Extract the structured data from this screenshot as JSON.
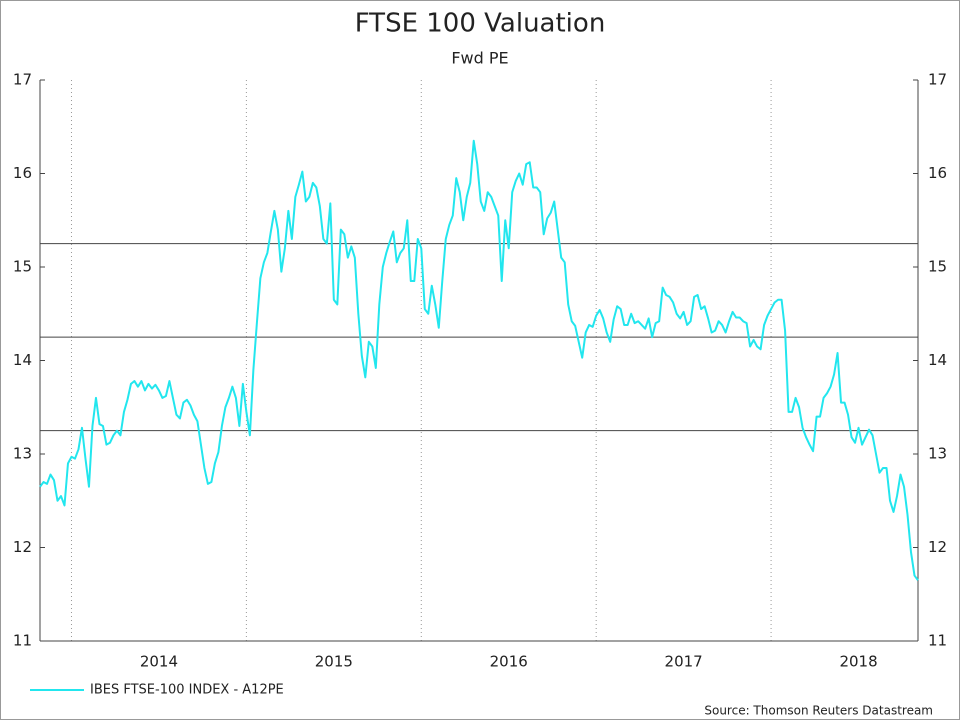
{
  "chart_data": {
    "type": "line",
    "title": "FTSE 100 Valuation",
    "subtitle": "Fwd PE",
    "source": "Source: Thomson Reuters Datastream",
    "xlim": [
      2013.82,
      2018.84
    ],
    "ylim": [
      11,
      17
    ],
    "yticks": [
      11,
      12,
      13,
      14,
      15,
      16,
      17
    ],
    "xticks": [
      {
        "value": 2014.5,
        "label": "2014"
      },
      {
        "value": 2015.5,
        "label": "2015"
      },
      {
        "value": 2016.5,
        "label": "2016"
      },
      {
        "value": 2017.5,
        "label": "2017"
      },
      {
        "value": 2018.5,
        "label": "2018"
      }
    ],
    "xgrid": [
      2014,
      2015,
      2016,
      2017,
      2018
    ],
    "hlines": [
      15.25,
      14.25,
      13.25
    ],
    "x": [
      2013.82,
      2013.84,
      2013.86,
      2013.88,
      2013.9,
      2013.92,
      2013.94,
      2013.96,
      2013.98,
      2014,
      2014.02,
      2014.04,
      2014.06,
      2014.08,
      2014.1,
      2014.12,
      2014.14,
      2014.16,
      2014.18,
      2014.2,
      2014.22,
      2014.24,
      2014.26,
      2014.28,
      2014.3,
      2014.32,
      2014.34,
      2014.36,
      2014.38,
      2014.4,
      2014.42,
      2014.44,
      2014.46,
      2014.48,
      2014.5,
      2014.52,
      2014.54,
      2014.56,
      2014.58,
      2014.6,
      2014.62,
      2014.64,
      2014.66,
      2014.68,
      2014.7,
      2014.72,
      2014.74,
      2014.76,
      2014.78,
      2014.8,
      2014.82,
      2014.84,
      2014.86,
      2014.88,
      2014.9,
      2014.92,
      2014.94,
      2014.96,
      2014.98,
      2015,
      2015.02,
      2015.04,
      2015.06,
      2015.08,
      2015.1,
      2015.12,
      2015.14,
      2015.16,
      2015.18,
      2015.2,
      2015.22,
      2015.24,
      2015.26,
      2015.28,
      2015.3,
      2015.32,
      2015.34,
      2015.36,
      2015.38,
      2015.4,
      2015.42,
      2015.44,
      2015.46,
      2015.48,
      2015.5,
      2015.52,
      2015.54,
      2015.56,
      2015.58,
      2015.6,
      2015.62,
      2015.64,
      2015.66,
      2015.68,
      2015.7,
      2015.72,
      2015.74,
      2015.76,
      2015.78,
      2015.8,
      2015.82,
      2015.84,
      2015.86,
      2015.88,
      2015.9,
      2015.92,
      2015.94,
      2015.96,
      2015.98,
      2016,
      2016.02,
      2016.04,
      2016.06,
      2016.08,
      2016.1,
      2016.12,
      2016.14,
      2016.16,
      2016.18,
      2016.2,
      2016.22,
      2016.24,
      2016.26,
      2016.28,
      2016.3,
      2016.32,
      2016.34,
      2016.36,
      2016.38,
      2016.4,
      2016.42,
      2016.44,
      2016.46,
      2016.48,
      2016.5,
      2016.52,
      2016.54,
      2016.56,
      2016.58,
      2016.6,
      2016.62,
      2016.64,
      2016.66,
      2016.68,
      2016.7,
      2016.72,
      2016.74,
      2016.76,
      2016.78,
      2016.8,
      2016.82,
      2016.84,
      2016.86,
      2016.88,
      2016.9,
      2016.92,
      2016.94,
      2016.96,
      2016.98,
      2017,
      2017.02,
      2017.04,
      2017.06,
      2017.08,
      2017.1,
      2017.12,
      2017.14,
      2017.16,
      2017.18,
      2017.2,
      2017.22,
      2017.24,
      2017.26,
      2017.28,
      2017.3,
      2017.32,
      2017.34,
      2017.36,
      2017.38,
      2017.4,
      2017.42,
      2017.44,
      2017.46,
      2017.48,
      2017.5,
      2017.52,
      2017.54,
      2017.56,
      2017.58,
      2017.6,
      2017.62,
      2017.64,
      2017.66,
      2017.68,
      2017.7,
      2017.72,
      2017.74,
      2017.76,
      2017.78,
      2017.8,
      2017.82,
      2017.84,
      2017.86,
      2017.88,
      2017.9,
      2017.92,
      2017.94,
      2017.96,
      2017.98,
      2018,
      2018.02,
      2018.04,
      2018.06,
      2018.08,
      2018.1,
      2018.12,
      2018.14,
      2018.16,
      2018.18,
      2018.2,
      2018.22,
      2018.24,
      2018.26,
      2018.28,
      2018.3,
      2018.32,
      2018.34,
      2018.36,
      2018.38,
      2018.4,
      2018.42,
      2018.44,
      2018.46,
      2018.48,
      2018.5,
      2018.52,
      2018.54,
      2018.56,
      2018.58,
      2018.6,
      2018.62,
      2018.64,
      2018.66,
      2018.68,
      2018.7,
      2018.72,
      2018.74,
      2018.76,
      2018.78,
      2018.8,
      2018.82,
      2018.84
    ],
    "series": [
      {
        "name": "IBES FTSE-100 INDEX - A12PE",
        "color": "#22e6ee",
        "values": [
          12.65,
          12.7,
          12.68,
          12.78,
          12.72,
          12.5,
          12.55,
          12.45,
          12.9,
          12.97,
          12.95,
          13.05,
          13.28,
          12.95,
          12.65,
          13.3,
          13.6,
          13.32,
          13.3,
          13.1,
          13.12,
          13.2,
          13.25,
          13.2,
          13.45,
          13.58,
          13.75,
          13.78,
          13.72,
          13.78,
          13.68,
          13.75,
          13.7,
          13.74,
          13.68,
          13.6,
          13.62,
          13.78,
          13.6,
          13.42,
          13.38,
          13.55,
          13.58,
          13.52,
          13.42,
          13.35,
          13.1,
          12.85,
          12.68,
          12.7,
          12.9,
          13.02,
          13.3,
          13.5,
          13.6,
          13.72,
          13.6,
          13.3,
          13.75,
          13.45,
          13.2,
          13.9,
          14.4,
          14.88,
          15.05,
          15.15,
          15.38,
          15.6,
          15.4,
          14.95,
          15.2,
          15.6,
          15.3,
          15.75,
          15.88,
          16.02,
          15.7,
          15.75,
          15.9,
          15.85,
          15.65,
          15.3,
          15.25,
          15.68,
          14.65,
          14.6,
          15.4,
          15.35,
          15.1,
          15.22,
          15.1,
          14.5,
          14.05,
          13.82,
          14.2,
          14.15,
          13.92,
          14.6,
          15.0,
          15.15,
          15.27,
          15.38,
          15.05,
          15.15,
          15.2,
          15.5,
          14.85,
          14.85,
          15.3,
          15.2,
          14.55,
          14.5,
          14.8,
          14.6,
          14.35,
          14.85,
          15.3,
          15.45,
          15.55,
          15.95,
          15.8,
          15.5,
          15.75,
          15.9,
          16.35,
          16.1,
          15.7,
          15.6,
          15.8,
          15.75,
          15.65,
          15.55,
          14.85,
          15.5,
          15.2,
          15.8,
          15.92,
          16.0,
          15.88,
          16.1,
          16.12,
          15.85,
          15.85,
          15.8,
          15.35,
          15.52,
          15.58,
          15.7,
          15.4,
          15.1,
          15.05,
          14.6,
          14.42,
          14.37,
          14.2,
          14.03,
          14.3,
          14.38,
          14.36,
          14.48,
          14.54,
          14.45,
          14.3,
          14.2,
          14.44,
          14.58,
          14.55,
          14.38,
          14.38,
          14.5,
          14.4,
          14.42,
          14.38,
          14.34,
          14.45,
          14.25,
          14.4,
          14.42,
          14.78,
          14.7,
          14.68,
          14.62,
          14.5,
          14.45,
          14.52,
          14.38,
          14.42,
          14.68,
          14.7,
          14.55,
          14.58,
          14.45,
          14.3,
          14.32,
          14.42,
          14.38,
          14.3,
          14.42,
          14.52,
          14.46,
          14.46,
          14.42,
          14.4,
          14.15,
          14.22,
          14.15,
          14.12,
          14.38,
          14.48,
          14.55,
          14.62,
          14.65,
          14.65,
          14.32,
          13.45,
          13.45,
          13.6,
          13.5,
          13.28,
          13.18,
          13.1,
          13.03,
          13.4,
          13.4,
          13.6,
          13.65,
          13.72,
          13.85,
          14.08,
          13.55,
          13.55,
          13.42,
          13.18,
          13.12,
          13.28,
          13.1,
          13.18,
          13.26,
          13.2,
          13.0,
          12.8,
          12.85,
          12.85,
          12.5,
          12.38,
          12.55,
          12.78,
          12.65,
          12.35,
          11.95,
          11.7,
          11.65
        ]
      }
    ]
  }
}
